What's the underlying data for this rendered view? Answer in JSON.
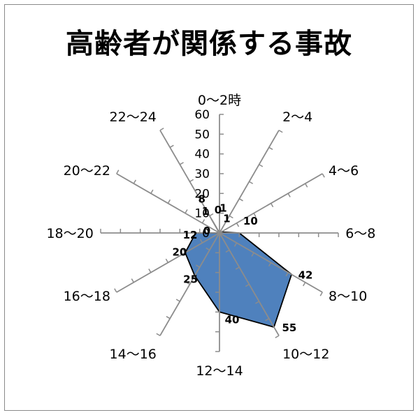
{
  "chart_data": {
    "type": "radar",
    "title": "高齢者が関係する事故",
    "categories": [
      "0～2時",
      "2～4",
      "4～6",
      "6～8",
      "8～10",
      "10～12",
      "12～14",
      "14～16",
      "16～18",
      "18～20",
      "20～22",
      "22～24"
    ],
    "series": [
      {
        "values": [
          0,
          1,
          1,
          10,
          42,
          55,
          40,
          25,
          20,
          12,
          0,
          8
        ],
        "color": "#4f81bd"
      }
    ],
    "axis": {
      "min": 0,
      "max": 60,
      "step": 10,
      "tick_labels": [
        "0",
        "10",
        "20",
        "30",
        "40",
        "50",
        "60"
      ]
    },
    "data_labels": [
      "0",
      "1",
      "1",
      "10",
      "42",
      "55",
      "40",
      "25",
      "20",
      "12",
      "0",
      "8"
    ],
    "data_label_extra": "1"
  }
}
